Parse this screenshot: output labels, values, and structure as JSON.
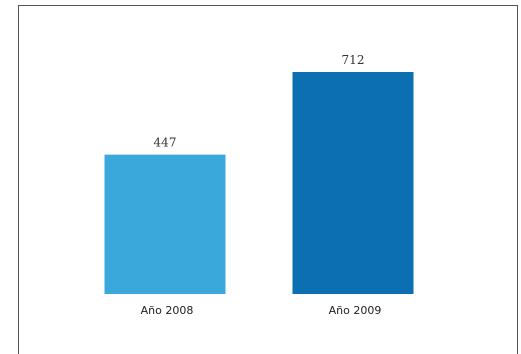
{
  "chart_data": {
    "type": "bar",
    "categories": [
      "Año 2008",
      "Año 2009"
    ],
    "values": [
      447,
      712
    ],
    "colors": [
      "#3aa8db",
      "#0b6fb2"
    ],
    "title": "",
    "xlabel": "",
    "ylabel": "",
    "ylim": [
      0,
      800
    ],
    "grid": false,
    "legend": "none"
  }
}
